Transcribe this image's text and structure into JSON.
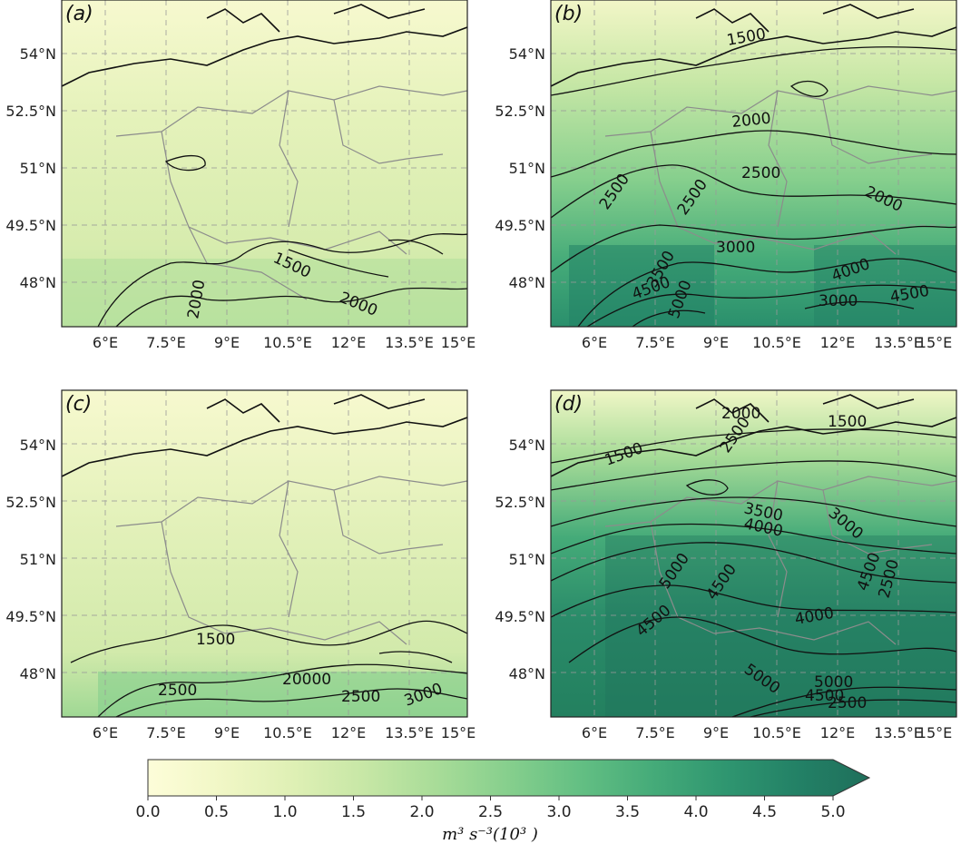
{
  "panels": [
    {
      "id": "a",
      "label": "(a)",
      "contours": [
        "1500",
        "2000",
        "2000"
      ]
    },
    {
      "id": "b",
      "label": "(b)",
      "contours": [
        "1500",
        "2000",
        "2500",
        "2500",
        "2500",
        "2000",
        "3000",
        "4000",
        "4500",
        "3000",
        "4500",
        "5000",
        "3500"
      ]
    },
    {
      "id": "c",
      "label": "(c)",
      "contours": [
        "1500",
        "2500",
        "20000",
        "2500",
        "3000"
      ]
    },
    {
      "id": "d",
      "label": "(d)",
      "contours": [
        "2000",
        "1500",
        "2500",
        "1500",
        "3500",
        "4000",
        "3000",
        "5000",
        "4500",
        "4000",
        "4500",
        "2500",
        "4500",
        "5000",
        "5000",
        "4500",
        "2500"
      ]
    }
  ],
  "axes": {
    "x_ticks": [
      "6°E",
      "7.5°E",
      "9°E",
      "10.5°E",
      "12°E",
      "13.5°E",
      "15°E"
    ],
    "y_ticks": [
      "54°N",
      "52.5°N",
      "51°N",
      "49.5°N",
      "48°N"
    ]
  },
  "colorbar": {
    "ticks": [
      "0.0",
      "0.5",
      "1.0",
      "1.5",
      "2.0",
      "2.5",
      "3.0",
      "3.5",
      "4.0",
      "4.5",
      "5.0"
    ],
    "label": "m³ s⁻³(10³ )",
    "colors": [
      "#fdfdd9",
      "#f1f7c6",
      "#dff0b5",
      "#c7e7a6",
      "#a8dc98",
      "#86cf8d",
      "#63bf83",
      "#45ab79",
      "#2f9670",
      "#238166",
      "#1f6f5b"
    ]
  }
}
